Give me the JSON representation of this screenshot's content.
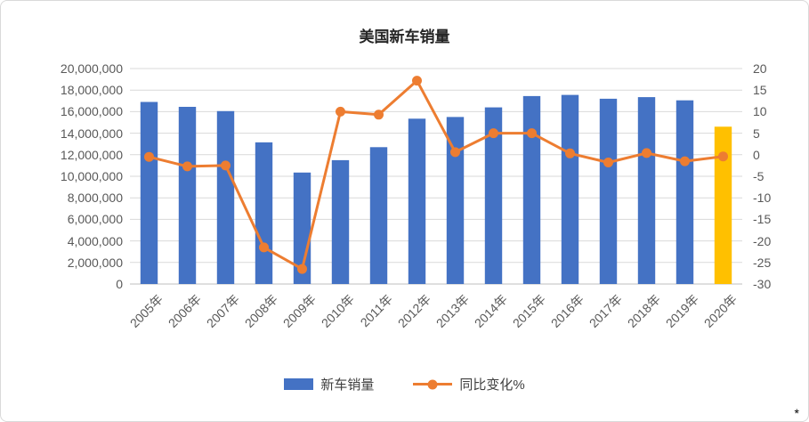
{
  "title": "美国新车销量",
  "colors": {
    "bar": "#4472C4",
    "bar_highlight": "#FFC000",
    "line": "#ED7D31",
    "grid": "#D9D9D9",
    "axis_line": "#BFBFBF",
    "axis_text": "#595959",
    "title_text": "#262626",
    "legend_text": "#404040",
    "frame_border": "#D9D9D9"
  },
  "chart_data": {
    "type": "bar+line combo",
    "title": "美国新车销量",
    "categories": [
      "2005年",
      "2006年",
      "2007年",
      "2008年",
      "2009年",
      "2010年",
      "2011年",
      "2012年",
      "2013年",
      "2014年",
      "2015年",
      "2016年",
      "2017年",
      "2018年",
      "2019年",
      "2020年"
    ],
    "series": [
      {
        "name": "新车销量",
        "type": "bar",
        "axis": "left",
        "color": "#4472C4",
        "highlight_index": 15,
        "highlight_color": "#FFC000",
        "values": [
          16900000,
          16450000,
          16050000,
          13150000,
          10350000,
          11500000,
          12700000,
          15350000,
          15500000,
          16400000,
          17450000,
          17550000,
          17200000,
          17350000,
          17050000,
          14600000
        ]
      },
      {
        "name": "同比变化%",
        "type": "line",
        "axis": "right",
        "color": "#ED7D31",
        "values": [
          -0.5,
          -2.7,
          -2.5,
          -21.5,
          -26.5,
          10.0,
          9.3,
          17.2,
          0.6,
          5.0,
          5.0,
          0.3,
          -1.8,
          0.4,
          -1.5,
          -0.4
        ]
      }
    ],
    "left_axis": {
      "min": 0,
      "max": 20000000,
      "step": 2000000,
      "tick_labels": [
        "0",
        "2,000,000",
        "4,000,000",
        "6,000,000",
        "8,000,000",
        "10,000,000",
        "12,000,000",
        "14,000,000",
        "16,000,000",
        "18,000,000",
        "20,000,000"
      ]
    },
    "right_axis": {
      "min": -30,
      "max": 20,
      "step": 5,
      "tick_labels": [
        "-30",
        "-25",
        "-20",
        "-15",
        "-10",
        "-5",
        "0",
        "5",
        "10",
        "15",
        "20"
      ]
    },
    "grid": true,
    "legend_position": "bottom"
  },
  "legend": {
    "items": [
      {
        "label": "新车销量",
        "swatch": "bar"
      },
      {
        "label": "同比变化%",
        "swatch": "line-marker"
      }
    ]
  },
  "corner_mark": "*"
}
